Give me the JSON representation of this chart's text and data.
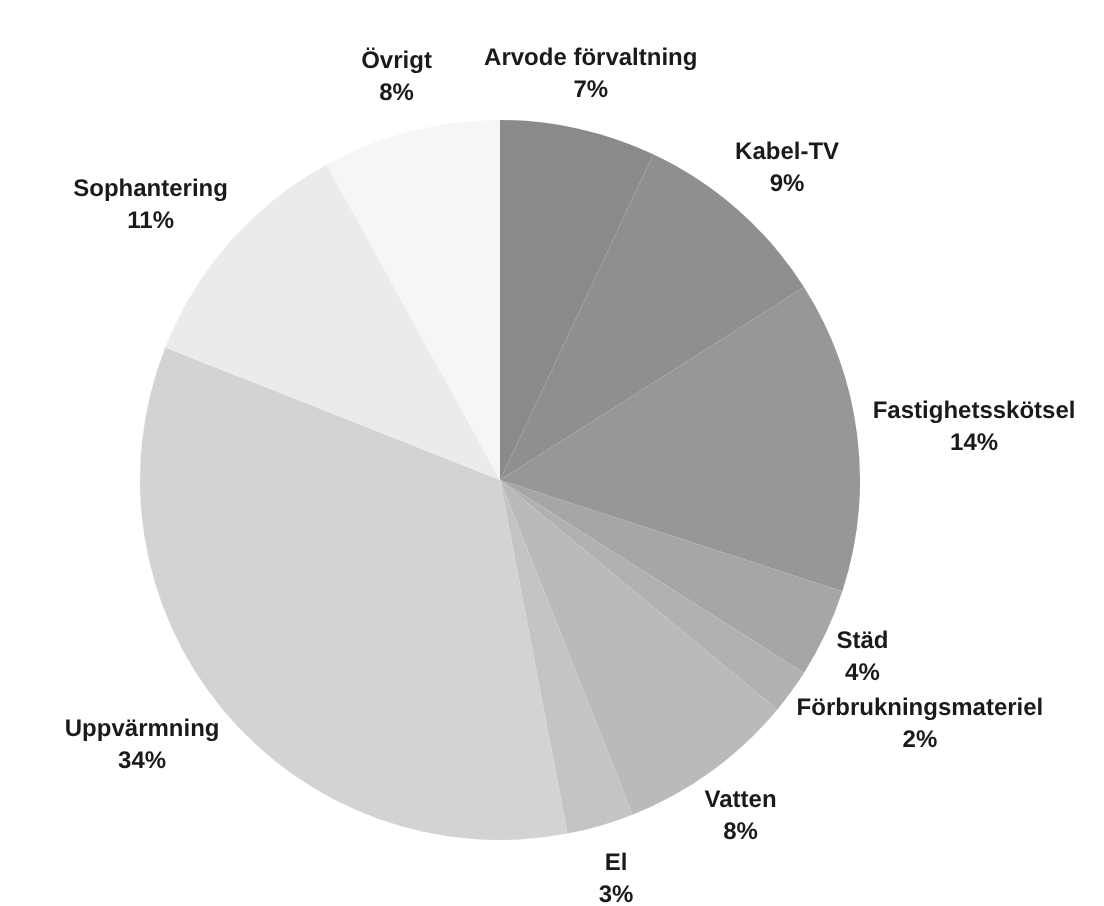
{
  "chart_data": {
    "type": "pie",
    "categories": [
      "Arvode förvaltning",
      "Kabel-TV",
      "Fastighetsskötsel",
      "Städ",
      "Förbrukningsmateriel",
      "Vatten",
      "El",
      "Uppvärmning",
      "Sophantering",
      "Övrigt"
    ],
    "values": [
      7,
      9,
      14,
      4,
      2,
      8,
      3,
      34,
      11,
      8
    ],
    "value_labels": [
      "7%",
      "9%",
      "14%",
      "4%",
      "2%",
      "8%",
      "3%",
      "34%",
      "11%",
      "8%"
    ],
    "colors": [
      "#8a8a8a",
      "#8f8f8f",
      "#979797",
      "#a6a6a6",
      "#b1b1b1",
      "#bababa",
      "#c4c4c4",
      "#d3d3d3",
      "#ebebeb",
      "#f6f6f6"
    ],
    "legend": false
  }
}
